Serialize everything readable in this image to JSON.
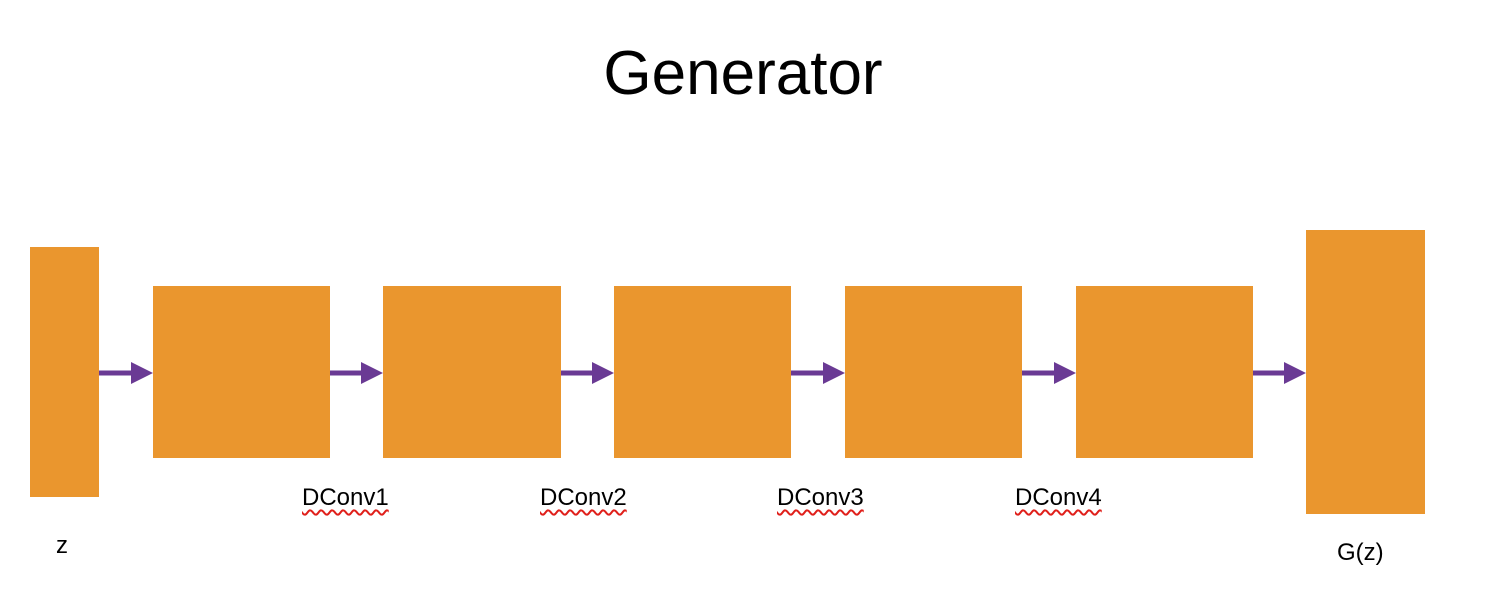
{
  "title": "Generator",
  "colors": {
    "block": "#EA962E",
    "arrow": "#6A3A94",
    "spellcheck_underline": "#E0201B",
    "text": "#000000"
  },
  "nodes": [
    {
      "id": "z",
      "label": "z"
    },
    {
      "id": "dconv1",
      "label": "DConv1"
    },
    {
      "id": "dconv2",
      "label": "DConv2"
    },
    {
      "id": "dconv3",
      "label": "DConv3"
    },
    {
      "id": "dconv4",
      "label": "DConv4"
    },
    {
      "id": "gz",
      "label": "G(z)"
    }
  ],
  "edges": [
    {
      "from": "z",
      "to": "dconv1"
    },
    {
      "from": "dconv1",
      "to": "dconv2"
    },
    {
      "from": "dconv2",
      "to": "dconv3"
    },
    {
      "from": "dconv3",
      "to": "dconv4"
    },
    {
      "from": "dconv4",
      "to": "gz"
    }
  ]
}
